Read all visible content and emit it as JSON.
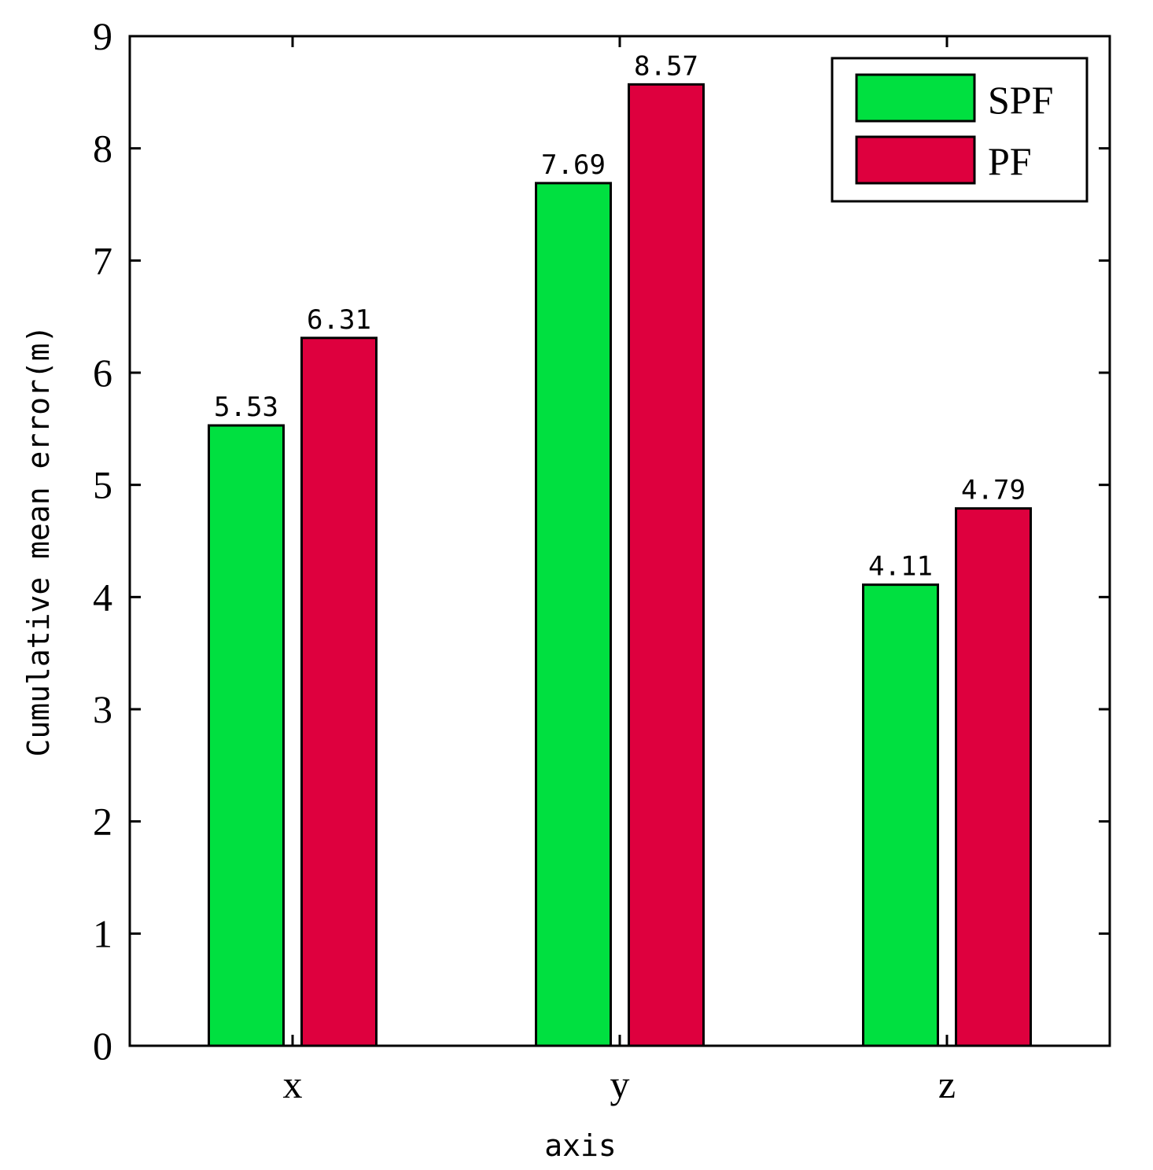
{
  "chart_data": {
    "type": "bar",
    "categories": [
      "x",
      "y",
      "z"
    ],
    "series": [
      {
        "name": "SPF",
        "color": "#00e040",
        "values": [
          5.53,
          7.69,
          4.11
        ]
      },
      {
        "name": "PF",
        "color": "#de003e",
        "values": [
          6.31,
          8.57,
          4.79
        ]
      }
    ],
    "data_labels": [
      [
        "5.53",
        "7.69",
        "4.11"
      ],
      [
        "6.31",
        "8.57",
        "4.79"
      ]
    ],
    "xlabel": "axis",
    "ylabel": "Cumulative mean error(m)",
    "ylim": [
      0,
      9
    ],
    "yticks": [
      "0",
      "1",
      "2",
      "3",
      "4",
      "5",
      "6",
      "7",
      "8",
      "9"
    ],
    "legend_position": "top-right",
    "grid": false
  }
}
